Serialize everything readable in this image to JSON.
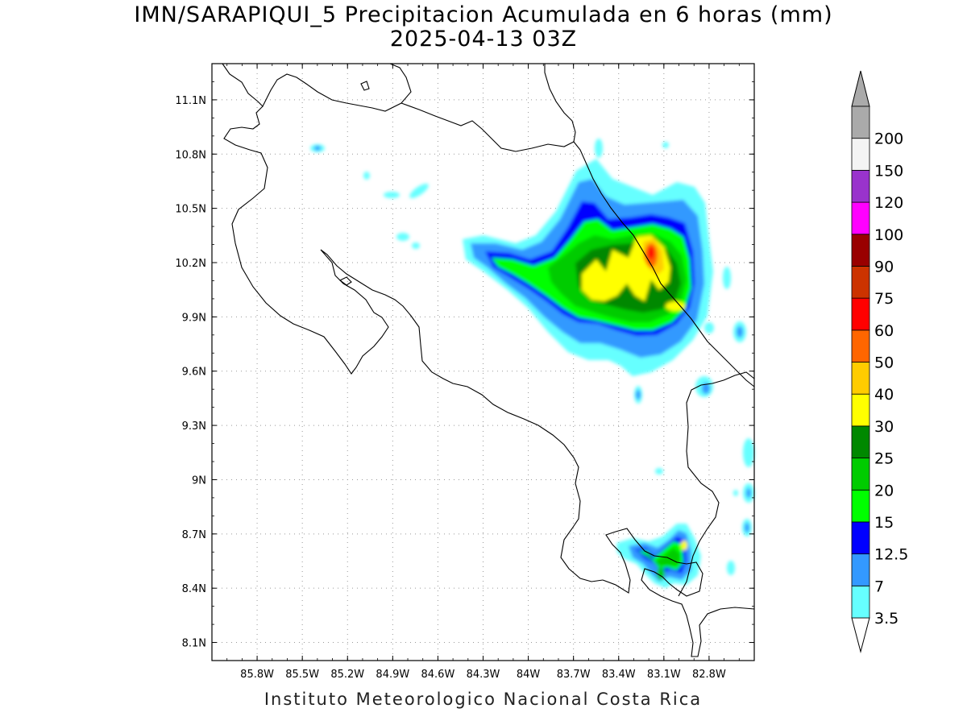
{
  "title": "IMN/SARAPIQUI_5 Precipitacion Acumulada en 6 horas (mm)",
  "subtitle": "2025-04-13 03Z",
  "footer": "Instituto Meteorologico Nacional Costa Rica",
  "map": {
    "lon_range": [
      -86.1,
      -82.5
    ],
    "lat_range": [
      8.0,
      11.3
    ],
    "lon_ticks": [
      -85.8,
      -85.5,
      -85.2,
      -84.9,
      -84.6,
      -84.3,
      -84.0,
      -83.7,
      -83.4,
      -83.1,
      -82.8
    ],
    "lon_tick_labels": [
      "85.8W",
      "85.5W",
      "85.2W",
      "84.9W",
      "84.6W",
      "84.3W",
      "84W",
      "83.7W",
      "83.4W",
      "83.1W",
      "82.8W"
    ],
    "lat_ticks": [
      8.1,
      8.4,
      8.7,
      9.0,
      9.3,
      9.6,
      9.9,
      10.2,
      10.5,
      10.8,
      11.1
    ],
    "lat_tick_labels": [
      "8.1N",
      "8.4N",
      "8.7N",
      "9N",
      "9.3N",
      "9.6N",
      "9.9N",
      "10.2N",
      "10.5N",
      "10.8N",
      "11.1N"
    ],
    "grid": "dotted"
  },
  "colorbar": {
    "levels": [
      "3.5",
      "7",
      "12.5",
      "15",
      "20",
      "25",
      "30",
      "40",
      "50",
      "60",
      "75",
      "90",
      "100",
      "120",
      "150",
      "200"
    ],
    "colors": [
      "#66ffff",
      "#3399ff",
      "#0000ff",
      "#00ff00",
      "#00cc00",
      "#008800",
      "#ffff00",
      "#ffcc00",
      "#ff6600",
      "#ff0000",
      "#cc3300",
      "#990000",
      "#ff00ff",
      "#9933cc",
      "#f4f4f4",
      "#aaaaaa"
    ],
    "below_color": "#ffffff",
    "above_color": "#aaaaaa"
  }
}
